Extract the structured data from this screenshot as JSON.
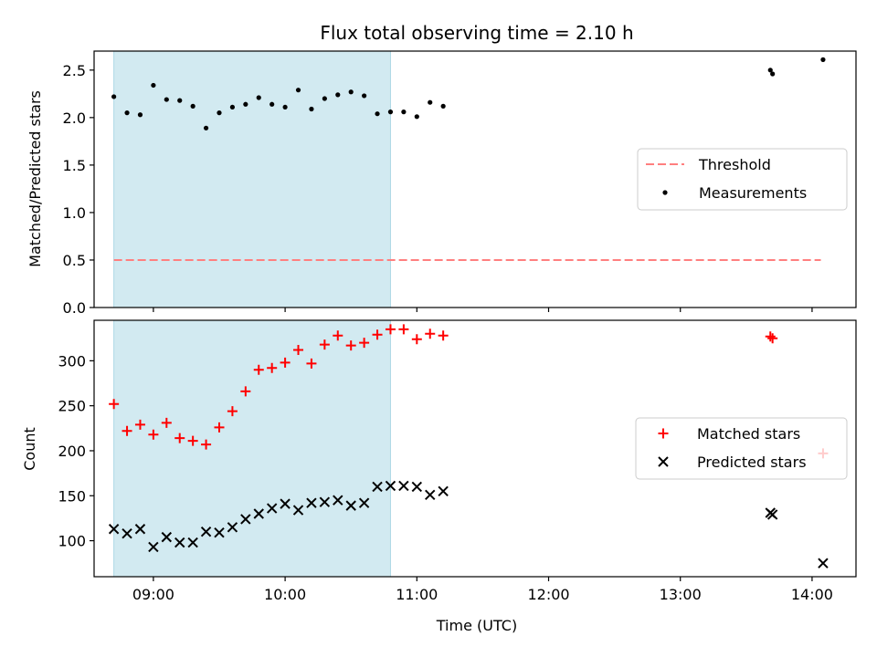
{
  "chart_data": [
    {
      "type": "scatter",
      "title": "Flux total observing time = 2.10 h",
      "xlabel": "",
      "ylabel": "Matched/Predicted stars",
      "x_range": [
        "08:33",
        "14:20"
      ],
      "ylim": [
        0,
        2.7
      ],
      "yticks": [
        "0.0",
        "0.5",
        "1.0",
        "1.5",
        "2.0",
        "2.5"
      ],
      "shaded_interval": [
        "08:42",
        "10:48"
      ],
      "shade_color": "#add8e6",
      "threshold": {
        "name": "Threshold",
        "y": 0.5,
        "x": [
          "08:42",
          "14:04"
        ],
        "color": "#ff7f7f",
        "style": "dashed"
      },
      "series": [
        {
          "name": "Measurements",
          "marker": "dot",
          "color": "#000000",
          "points": [
            [
              "08:42",
              2.22
            ],
            [
              "08:48",
              2.05
            ],
            [
              "08:54",
              2.03
            ],
            [
              "09:00",
              2.34
            ],
            [
              "09:06",
              2.19
            ],
            [
              "09:12",
              2.18
            ],
            [
              "09:18",
              2.12
            ],
            [
              "09:24",
              1.89
            ],
            [
              "09:30",
              2.05
            ],
            [
              "09:36",
              2.11
            ],
            [
              "09:42",
              2.14
            ],
            [
              "09:48",
              2.21
            ],
            [
              "09:54",
              2.14
            ],
            [
              "10:00",
              2.11
            ],
            [
              "10:06",
              2.29
            ],
            [
              "10:12",
              2.09
            ],
            [
              "10:18",
              2.2
            ],
            [
              "10:24",
              2.24
            ],
            [
              "10:30",
              2.27
            ],
            [
              "10:36",
              2.23
            ],
            [
              "10:42",
              2.04
            ],
            [
              "10:48",
              2.06
            ],
            [
              "10:54",
              2.06
            ],
            [
              "11:00",
              2.01
            ],
            [
              "11:06",
              2.16
            ],
            [
              "11:12",
              2.12
            ],
            [
              "13:41",
              2.5
            ],
            [
              "13:42",
              2.46
            ],
            [
              "14:05",
              2.61
            ]
          ]
        }
      ],
      "legend": {
        "position": "center-right",
        "entries": [
          "Threshold",
          "Measurements"
        ]
      },
      "grid": false
    },
    {
      "type": "scatter",
      "title": "",
      "xlabel": "Time (UTC)",
      "ylabel": "Count",
      "x_range": [
        "08:33",
        "14:20"
      ],
      "xticks": [
        "09:00",
        "10:00",
        "11:00",
        "12:00",
        "13:00",
        "14:00"
      ],
      "ylim": [
        60,
        345
      ],
      "yticks": [
        "100",
        "150",
        "200",
        "250",
        "300"
      ],
      "shaded_interval": [
        "08:42",
        "10:48"
      ],
      "shade_color": "#add8e6",
      "series": [
        {
          "name": "Matched stars",
          "marker": "plus",
          "color": "#ff0000",
          "points": [
            [
              "08:42",
              252
            ],
            [
              "08:48",
              222
            ],
            [
              "08:54",
              229
            ],
            [
              "09:00",
              218
            ],
            [
              "09:06",
              231
            ],
            [
              "09:12",
              214
            ],
            [
              "09:18",
              211
            ],
            [
              "09:24",
              207
            ],
            [
              "09:30",
              226
            ],
            [
              "09:36",
              244
            ],
            [
              "09:42",
              266
            ],
            [
              "09:48",
              290
            ],
            [
              "09:54",
              292
            ],
            [
              "10:00",
              298
            ],
            [
              "10:06",
              312
            ],
            [
              "10:12",
              297
            ],
            [
              "10:18",
              318
            ],
            [
              "10:24",
              328
            ],
            [
              "10:30",
              317
            ],
            [
              "10:36",
              320
            ],
            [
              "10:42",
              329
            ],
            [
              "10:48",
              335
            ],
            [
              "10:54",
              335
            ],
            [
              "11:00",
              324
            ],
            [
              "11:06",
              330
            ],
            [
              "11:12",
              328
            ],
            [
              "13:41",
              327
            ],
            [
              "13:42",
              325
            ],
            [
              "14:05",
              197
            ]
          ]
        },
        {
          "name": "Predicted stars",
          "marker": "x",
          "color": "#000000",
          "points": [
            [
              "08:42",
              113
            ],
            [
              "08:48",
              108
            ],
            [
              "08:54",
              113
            ],
            [
              "09:00",
              93
            ],
            [
              "09:06",
              104
            ],
            [
              "09:12",
              98
            ],
            [
              "09:18",
              98
            ],
            [
              "09:24",
              110
            ],
            [
              "09:30",
              109
            ],
            [
              "09:36",
              115
            ],
            [
              "09:42",
              124
            ],
            [
              "09:48",
              130
            ],
            [
              "09:54",
              136
            ],
            [
              "10:00",
              141
            ],
            [
              "10:06",
              134
            ],
            [
              "10:12",
              142
            ],
            [
              "10:18",
              143
            ],
            [
              "10:24",
              145
            ],
            [
              "10:30",
              139
            ],
            [
              "10:36",
              142
            ],
            [
              "10:42",
              160
            ],
            [
              "10:48",
              161
            ],
            [
              "10:54",
              161
            ],
            [
              "11:00",
              160
            ],
            [
              "11:06",
              151
            ],
            [
              "11:12",
              155
            ],
            [
              "13:41",
              131
            ],
            [
              "13:42",
              129
            ],
            [
              "14:05",
              75
            ]
          ]
        }
      ],
      "legend": {
        "position": "center-right",
        "entries": [
          "Matched stars",
          "Predicted stars"
        ]
      },
      "grid": false
    }
  ]
}
